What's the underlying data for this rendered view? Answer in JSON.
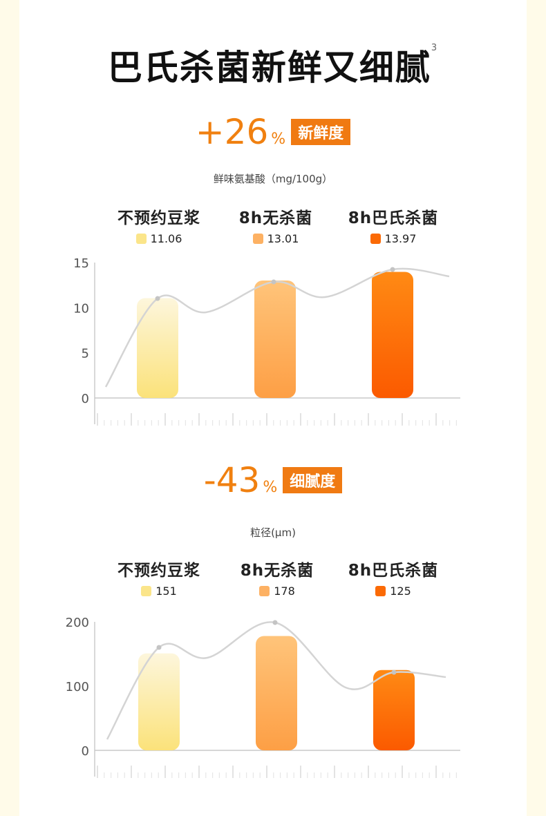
{
  "title": "巴氏杀菌新鲜又细腻",
  "title_superscript": "3",
  "colors": {
    "accent": "#f08010",
    "tag_bg": "#f07a12",
    "series_1": "#fbe58a",
    "series_2": "#fdb163",
    "series_3": "#fb6a05"
  },
  "sections": [
    {
      "stat_value": "+26",
      "stat_percent": "%",
      "tag": "新鲜度",
      "unit": "鲜味氨基酸（mg/100g）",
      "legend": [
        {
          "name": "不预约豆浆",
          "value": "11.06"
        },
        {
          "name": "8h无杀菌",
          "value": "13.01"
        },
        {
          "name": "8h巴氏杀菌",
          "value": "13.97"
        }
      ]
    },
    {
      "stat_value": "-43",
      "stat_percent": "%",
      "tag": "细腻度",
      "unit": "粒径(μm)",
      "legend": [
        {
          "name": "不预约豆浆",
          "value": "151"
        },
        {
          "name": "8h无杀菌",
          "value": "178"
        },
        {
          "name": "8h巴氏杀菌",
          "value": "125"
        }
      ]
    }
  ],
  "chart_data": [
    {
      "type": "bar",
      "categories": [
        "不预约豆浆",
        "8h无杀菌",
        "8h巴氏杀菌"
      ],
      "values": [
        11.06,
        13.01,
        13.97
      ],
      "ylabel": "鲜味氨基酸（mg/100g）",
      "yticks": [
        0,
        5,
        10,
        15
      ],
      "ylim": [
        0,
        15
      ],
      "grid": false,
      "legend_position": "top"
    },
    {
      "type": "bar",
      "categories": [
        "不预约豆浆",
        "8h无杀菌",
        "8h巴氏杀菌"
      ],
      "values": [
        151,
        178,
        125
      ],
      "ylabel": "粒径(μm)",
      "yticks": [
        0,
        100,
        200
      ],
      "ylim": [
        0,
        200
      ],
      "grid": false,
      "legend_position": "top"
    }
  ]
}
